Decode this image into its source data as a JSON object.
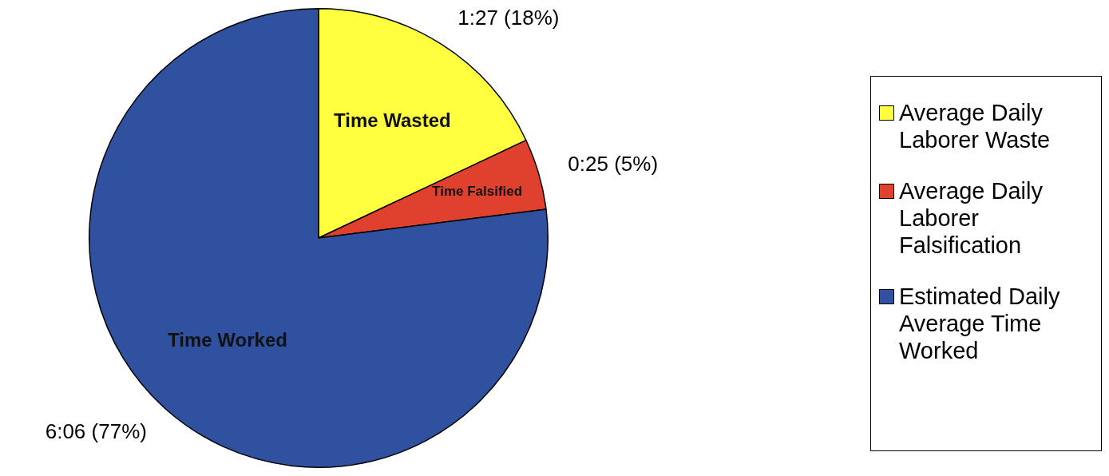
{
  "chart_data": {
    "type": "pie",
    "categories": [
      "Average Daily Laborer Waste",
      "Average Daily Laborer Falsification",
      "Estimated Daily Average Time Worked"
    ],
    "values": [
      18,
      5,
      77
    ],
    "colors": [
      "#ffff40",
      "#e0402e",
      "#3050a0"
    ],
    "value_labels": [
      "1:27 (18%)",
      "0:25 (5%)",
      "6:06 (77%)"
    ],
    "annotations": [
      "Time Wasted",
      "Time Falsified",
      "Time Worked"
    ],
    "legend": "right"
  }
}
